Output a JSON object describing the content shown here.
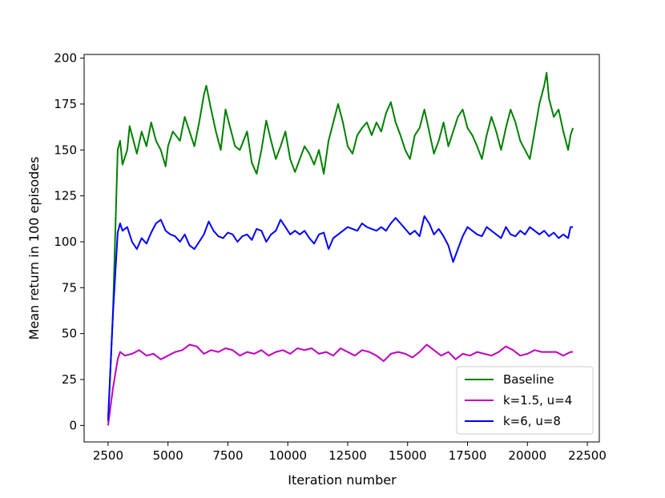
{
  "chart_data": {
    "type": "line",
    "title": "",
    "xlabel": "Iteration number",
    "ylabel": "Mean return in 100 episodes",
    "xlim": [
      1500,
      23000
    ],
    "ylim": [
      -9,
      202
    ],
    "xticks": [
      2500,
      5000,
      7500,
      10000,
      12500,
      15000,
      17500,
      20000,
      22500
    ],
    "yticks": [
      0,
      25,
      50,
      75,
      100,
      125,
      150,
      175,
      200
    ],
    "grid": false,
    "legend_position": "bottom-right",
    "series": [
      {
        "name": "Baseline",
        "color": "#008000",
        "points": [
          [
            2500,
            2
          ],
          [
            2700,
            60
          ],
          [
            2900,
            150
          ],
          [
            3000,
            155
          ],
          [
            3100,
            142
          ],
          [
            3300,
            150
          ],
          [
            3400,
            163
          ],
          [
            3500,
            158
          ],
          [
            3700,
            148
          ],
          [
            3900,
            160
          ],
          [
            4100,
            152
          ],
          [
            4300,
            165
          ],
          [
            4500,
            155
          ],
          [
            4700,
            150
          ],
          [
            4900,
            141
          ],
          [
            5000,
            152
          ],
          [
            5200,
            160
          ],
          [
            5500,
            155
          ],
          [
            5700,
            168
          ],
          [
            5900,
            160
          ],
          [
            6100,
            152
          ],
          [
            6300,
            165
          ],
          [
            6500,
            180
          ],
          [
            6600,
            185
          ],
          [
            6800,
            172
          ],
          [
            7000,
            160
          ],
          [
            7200,
            150
          ],
          [
            7400,
            172
          ],
          [
            7600,
            162
          ],
          [
            7800,
            152
          ],
          [
            8000,
            150
          ],
          [
            8300,
            160
          ],
          [
            8500,
            143
          ],
          [
            8700,
            137
          ],
          [
            8900,
            150
          ],
          [
            9100,
            166
          ],
          [
            9300,
            155
          ],
          [
            9500,
            145
          ],
          [
            9700,
            152
          ],
          [
            9900,
            160
          ],
          [
            10100,
            145
          ],
          [
            10300,
            138
          ],
          [
            10500,
            145
          ],
          [
            10700,
            152
          ],
          [
            10900,
            148
          ],
          [
            11100,
            142
          ],
          [
            11300,
            150
          ],
          [
            11500,
            137
          ],
          [
            11700,
            155
          ],
          [
            11900,
            165
          ],
          [
            12100,
            175
          ],
          [
            12300,
            165
          ],
          [
            12500,
            152
          ],
          [
            12700,
            148
          ],
          [
            12900,
            158
          ],
          [
            13100,
            162
          ],
          [
            13300,
            165
          ],
          [
            13500,
            158
          ],
          [
            13700,
            165
          ],
          [
            13900,
            160
          ],
          [
            14100,
            170
          ],
          [
            14300,
            176
          ],
          [
            14500,
            165
          ],
          [
            14700,
            158
          ],
          [
            14900,
            150
          ],
          [
            15100,
            145
          ],
          [
            15300,
            158
          ],
          [
            15500,
            162
          ],
          [
            15700,
            172
          ],
          [
            15900,
            160
          ],
          [
            16100,
            148
          ],
          [
            16300,
            155
          ],
          [
            16500,
            165
          ],
          [
            16700,
            152
          ],
          [
            16900,
            160
          ],
          [
            17100,
            168
          ],
          [
            17300,
            172
          ],
          [
            17500,
            162
          ],
          [
            17700,
            158
          ],
          [
            17900,
            152
          ],
          [
            18100,
            145
          ],
          [
            18300,
            158
          ],
          [
            18500,
            168
          ],
          [
            18700,
            160
          ],
          [
            18900,
            150
          ],
          [
            19100,
            162
          ],
          [
            19300,
            172
          ],
          [
            19500,
            165
          ],
          [
            19700,
            155
          ],
          [
            19900,
            150
          ],
          [
            20100,
            145
          ],
          [
            20300,
            160
          ],
          [
            20500,
            175
          ],
          [
            20700,
            185
          ],
          [
            20800,
            192
          ],
          [
            20900,
            178
          ],
          [
            21100,
            168
          ],
          [
            21300,
            172
          ],
          [
            21500,
            160
          ],
          [
            21700,
            150
          ],
          [
            21800,
            158
          ],
          [
            21900,
            162
          ]
        ]
      },
      {
        "name": "k=1.5, u=4",
        "color": "#bf00bf",
        "points": [
          [
            2500,
            0
          ],
          [
            2700,
            20
          ],
          [
            2900,
            36
          ],
          [
            3000,
            40
          ],
          [
            3200,
            38
          ],
          [
            3500,
            39
          ],
          [
            3800,
            41
          ],
          [
            4100,
            38
          ],
          [
            4400,
            39
          ],
          [
            4700,
            36
          ],
          [
            5000,
            38
          ],
          [
            5300,
            40
          ],
          [
            5600,
            41
          ],
          [
            5900,
            44
          ],
          [
            6200,
            43
          ],
          [
            6500,
            39
          ],
          [
            6800,
            41
          ],
          [
            7100,
            40
          ],
          [
            7400,
            42
          ],
          [
            7700,
            41
          ],
          [
            8000,
            38
          ],
          [
            8300,
            40
          ],
          [
            8600,
            39
          ],
          [
            8900,
            41
          ],
          [
            9200,
            38
          ],
          [
            9500,
            40
          ],
          [
            9800,
            41
          ],
          [
            10100,
            39
          ],
          [
            10400,
            42
          ],
          [
            10700,
            41
          ],
          [
            11000,
            42
          ],
          [
            11300,
            39
          ],
          [
            11600,
            40
          ],
          [
            11900,
            38
          ],
          [
            12200,
            42
          ],
          [
            12500,
            40
          ],
          [
            12800,
            38
          ],
          [
            13100,
            41
          ],
          [
            13400,
            40
          ],
          [
            13700,
            38
          ],
          [
            14000,
            35
          ],
          [
            14300,
            39
          ],
          [
            14600,
            40
          ],
          [
            14900,
            39
          ],
          [
            15200,
            37
          ],
          [
            15500,
            40
          ],
          [
            15800,
            44
          ],
          [
            16100,
            41
          ],
          [
            16400,
            38
          ],
          [
            16700,
            40
          ],
          [
            17000,
            36
          ],
          [
            17300,
            39
          ],
          [
            17600,
            38
          ],
          [
            17900,
            40
          ],
          [
            18200,
            39
          ],
          [
            18500,
            38
          ],
          [
            18800,
            40
          ],
          [
            19100,
            43
          ],
          [
            19400,
            41
          ],
          [
            19700,
            38
          ],
          [
            20000,
            39
          ],
          [
            20300,
            41
          ],
          [
            20600,
            40
          ],
          [
            20900,
            40
          ],
          [
            21200,
            40
          ],
          [
            21500,
            38
          ],
          [
            21800,
            40
          ],
          [
            21900,
            40
          ]
        ]
      },
      {
        "name": "k=6, u=8",
        "color": "#0000ff",
        "points": [
          [
            2500,
            3
          ],
          [
            2700,
            60
          ],
          [
            2900,
            105
          ],
          [
            3000,
            110
          ],
          [
            3100,
            106
          ],
          [
            3300,
            108
          ],
          [
            3500,
            100
          ],
          [
            3700,
            96
          ],
          [
            3900,
            102
          ],
          [
            4100,
            99
          ],
          [
            4300,
            105
          ],
          [
            4500,
            110
          ],
          [
            4700,
            112
          ],
          [
            4900,
            106
          ],
          [
            5100,
            104
          ],
          [
            5300,
            103
          ],
          [
            5500,
            100
          ],
          [
            5700,
            104
          ],
          [
            5900,
            98
          ],
          [
            6100,
            96
          ],
          [
            6300,
            100
          ],
          [
            6500,
            104
          ],
          [
            6700,
            111
          ],
          [
            6900,
            106
          ],
          [
            7100,
            103
          ],
          [
            7300,
            102
          ],
          [
            7500,
            105
          ],
          [
            7700,
            104
          ],
          [
            7900,
            100
          ],
          [
            8100,
            103
          ],
          [
            8300,
            104
          ],
          [
            8500,
            101
          ],
          [
            8700,
            107
          ],
          [
            8900,
            106
          ],
          [
            9100,
            100
          ],
          [
            9300,
            104
          ],
          [
            9500,
            106
          ],
          [
            9700,
            112
          ],
          [
            9900,
            108
          ],
          [
            10100,
            104
          ],
          [
            10300,
            106
          ],
          [
            10500,
            104
          ],
          [
            10700,
            106
          ],
          [
            10900,
            102
          ],
          [
            11100,
            99
          ],
          [
            11300,
            104
          ],
          [
            11500,
            105
          ],
          [
            11700,
            96
          ],
          [
            11900,
            102
          ],
          [
            12100,
            104
          ],
          [
            12300,
            106
          ],
          [
            12500,
            108
          ],
          [
            12700,
            107
          ],
          [
            12900,
            106
          ],
          [
            13100,
            110
          ],
          [
            13300,
            108
          ],
          [
            13500,
            107
          ],
          [
            13700,
            106
          ],
          [
            13900,
            108
          ],
          [
            14100,
            106
          ],
          [
            14300,
            110
          ],
          [
            14500,
            113
          ],
          [
            14700,
            110
          ],
          [
            14900,
            107
          ],
          [
            15100,
            104
          ],
          [
            15300,
            106
          ],
          [
            15500,
            103
          ],
          [
            15700,
            114
          ],
          [
            15900,
            110
          ],
          [
            16100,
            104
          ],
          [
            16300,
            107
          ],
          [
            16500,
            103
          ],
          [
            16700,
            98
          ],
          [
            16900,
            89
          ],
          [
            17100,
            96
          ],
          [
            17300,
            103
          ],
          [
            17500,
            108
          ],
          [
            17700,
            106
          ],
          [
            17900,
            104
          ],
          [
            18100,
            103
          ],
          [
            18300,
            108
          ],
          [
            18500,
            106
          ],
          [
            18700,
            104
          ],
          [
            18900,
            102
          ],
          [
            19100,
            108
          ],
          [
            19300,
            104
          ],
          [
            19500,
            103
          ],
          [
            19700,
            106
          ],
          [
            19900,
            104
          ],
          [
            20100,
            108
          ],
          [
            20300,
            106
          ],
          [
            20500,
            104
          ],
          [
            20700,
            106
          ],
          [
            20900,
            103
          ],
          [
            21100,
            105
          ],
          [
            21300,
            102
          ],
          [
            21500,
            104
          ],
          [
            21700,
            102
          ],
          [
            21800,
            108
          ],
          [
            21900,
            108
          ]
        ]
      }
    ]
  }
}
